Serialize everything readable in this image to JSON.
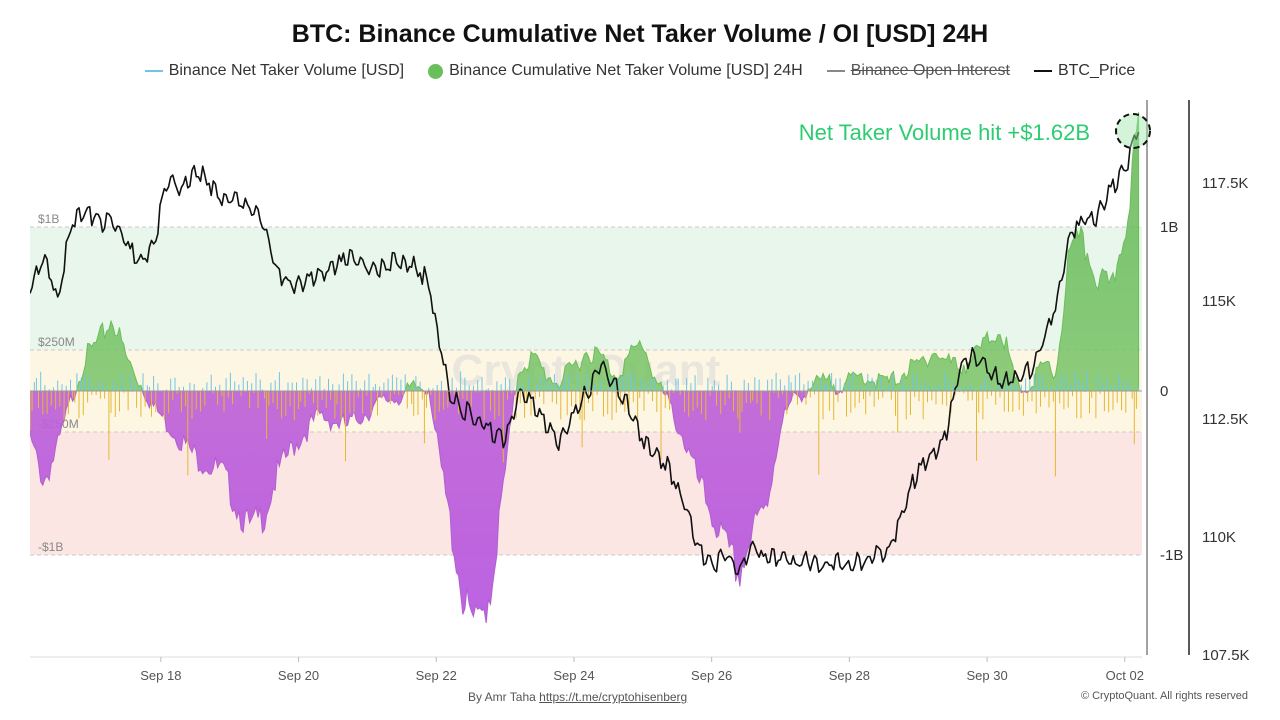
{
  "title": "BTC: Binance Cumulative Net Taker Volume / OI [USD] 24H",
  "legend": [
    {
      "label": "Binance Net Taker Volume [USD]",
      "color": "#6ec6e6",
      "marker": "line"
    },
    {
      "label": "Binance Cumulative Net Taker Volume [USD] 24H",
      "color": "#6abf5a",
      "marker": "dot"
    },
    {
      "label": "Binance Open Interest",
      "color": "#888888",
      "marker": "line",
      "hidden": true
    },
    {
      "label": "BTC_Price",
      "color": "#111111",
      "marker": "line"
    }
  ],
  "annotation": {
    "text": "Net Taker Volume hit +$1.62B",
    "color": "#2ecc71"
  },
  "watermark": "CryptoQuant",
  "footer": {
    "byline_prefix": "By Amr Taha",
    "byline_link": "https://t.me/cryptohisenberg",
    "copyright": "© CryptoQuant. All rights reserved"
  },
  "chart_data": {
    "type": "area",
    "x_axis": {
      "ticks": [
        "Sep 18",
        "Sep 20",
        "Sep 22",
        "Sep 24",
        "Sep 26",
        "Sep 28",
        "Sep 30",
        "Oct 02"
      ],
      "start_day": 16.1,
      "end_day": 32.25
    },
    "left_axis": {
      "band_labels": [
        "$1B",
        "$250M",
        "-$250M",
        "-$1B"
      ]
    },
    "y_axis_volume": {
      "ticks": [
        "1B",
        "0",
        "-1B"
      ],
      "range": [
        -1.62,
        1.62
      ],
      "unit": "B USD"
    },
    "y_axis_price": {
      "ticks": [
        "117.5K",
        "115K",
        "112.5K",
        "110K",
        "107.5K"
      ],
      "range": [
        107500,
        118900
      ]
    },
    "bands": [
      {
        "from": 0.25,
        "to": 1.0,
        "color": "#e9f6ec"
      },
      {
        "from": 0,
        "to": 0.25,
        "color": "#fdf6e3"
      },
      {
        "from": -0.25,
        "to": 0,
        "color": "#fdf6e3"
      },
      {
        "from": -1.0,
        "to": -0.25,
        "color": "#fbe6e4"
      }
    ],
    "cumulative_net_taker_volume_b": {
      "days": [
        16.1,
        16.3,
        16.5,
        16.7,
        16.9,
        17.1,
        17.3,
        17.5,
        17.7,
        17.9,
        18.1,
        18.3,
        18.5,
        18.7,
        18.9,
        19.1,
        19.3,
        19.5,
        19.7,
        19.9,
        20.1,
        20.3,
        20.5,
        20.7,
        20.9,
        21.1,
        21.3,
        21.5,
        21.7,
        21.9,
        22.0,
        22.2,
        22.4,
        22.6,
        22.8,
        23.0,
        23.2,
        23.4,
        23.6,
        23.8,
        24.0,
        24.2,
        24.4,
        24.6,
        24.8,
        25.0,
        25.2,
        25.4,
        25.6,
        25.8,
        26.0,
        26.2,
        26.4,
        26.6,
        26.8,
        27.0,
        27.2,
        27.4,
        27.6,
        27.8,
        28.0,
        28.2,
        28.4,
        28.6,
        28.8,
        29.0,
        29.2,
        29.4,
        29.6,
        29.8,
        30.0,
        30.2,
        30.4,
        30.6,
        30.8,
        31.0,
        31.2,
        31.4,
        31.6,
        31.8,
        32.0,
        32.2
      ],
      "values": [
        -0.3,
        -0.55,
        -0.35,
        -0.05,
        0.2,
        0.3,
        0.45,
        0.2,
        0.05,
        -0.1,
        -0.2,
        -0.3,
        -0.4,
        -0.45,
        -0.5,
        -0.7,
        -0.85,
        -0.75,
        -0.5,
        -0.35,
        -0.25,
        -0.15,
        -0.18,
        -0.22,
        -0.15,
        -0.1,
        -0.05,
        -0.03,
        0.02,
        0.03,
        -0.3,
        -0.8,
        -1.3,
        -1.45,
        -1.2,
        -0.5,
        0.15,
        0.2,
        0.1,
        0.05,
        0.15,
        0.25,
        0.2,
        0.1,
        0.2,
        0.3,
        0.05,
        -0.1,
        -0.3,
        -0.55,
        -0.75,
        -0.95,
        -1.12,
        -0.85,
        -0.7,
        -0.2,
        -0.05,
        0.02,
        0.05,
        0.04,
        0.05,
        0.1,
        0.06,
        0.05,
        0.12,
        0.15,
        0.25,
        0.18,
        0.15,
        0.2,
        0.3,
        0.4,
        0.05,
        0.0,
        0.15,
        0.1,
        0.85,
        0.9,
        0.7,
        0.6,
        1.0,
        1.62
      ]
    },
    "btc_price_usd": {
      "days": [
        16.1,
        16.3,
        16.5,
        16.7,
        16.9,
        17.1,
        17.3,
        17.5,
        17.7,
        17.9,
        18.1,
        18.3,
        18.5,
        18.7,
        18.9,
        19.1,
        19.3,
        19.5,
        19.7,
        19.9,
        20.1,
        20.3,
        20.5,
        20.7,
        20.9,
        21.1,
        21.3,
        21.5,
        21.7,
        21.9,
        22.0,
        22.2,
        22.4,
        22.6,
        22.8,
        23.0,
        23.2,
        23.4,
        23.6,
        23.8,
        24.0,
        24.2,
        24.4,
        24.6,
        24.8,
        25.0,
        25.2,
        25.4,
        25.6,
        25.8,
        26.0,
        26.2,
        26.4,
        26.6,
        26.8,
        27.0,
        27.2,
        27.4,
        27.6,
        27.8,
        28.0,
        28.2,
        28.4,
        28.6,
        28.8,
        29.0,
        29.2,
        29.4,
        29.6,
        29.8,
        30.0,
        30.2,
        30.4,
        30.6,
        30.8,
        31.0,
        31.2,
        31.4,
        31.6,
        31.8,
        32.0,
        32.2
      ],
      "values": [
        115200,
        116000,
        115000,
        116700,
        116900,
        116700,
        116600,
        116200,
        115800,
        116200,
        117600,
        117300,
        117800,
        117500,
        117200,
        117100,
        117000,
        116600,
        115600,
        115300,
        115400,
        115500,
        115700,
        115900,
        115800,
        115600,
        115800,
        115900,
        115700,
        115400,
        114500,
        113000,
        112700,
        112500,
        112200,
        112000,
        113000,
        112800,
        112300,
        112000,
        112600,
        113100,
        113700,
        113200,
        112800,
        112100,
        111800,
        111400,
        110700,
        109700,
        109400,
        109600,
        109300,
        109800,
        109500,
        109600,
        109400,
        109500,
        109400,
        109500,
        109400,
        109500,
        109600,
        109800,
        110700,
        111400,
        111700,
        112100,
        113600,
        113900,
        113600,
        113300,
        113300,
        113500,
        114100,
        114900,
        116400,
        116700,
        116800,
        117400,
        117800,
        118600
      ]
    }
  }
}
